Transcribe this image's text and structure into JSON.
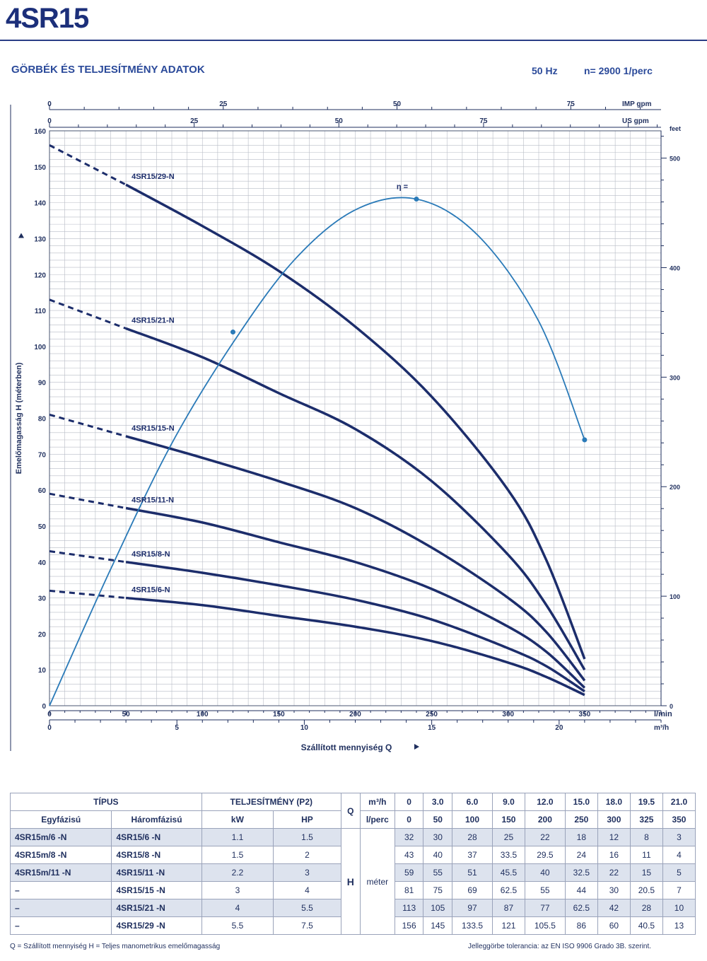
{
  "header": {
    "title": "4SR15",
    "subtitle": "GÖRBÉK ÉS TELJESÍTMÉNY ADATOK",
    "frequency": "50 Hz",
    "speed": "n= 2900 1/perc"
  },
  "chart_data": {
    "type": "line",
    "x_lmin_ticks": [
      "0",
      "50",
      "100",
      "150",
      "200",
      "250",
      "300",
      "350"
    ],
    "x_lmin_unit": "l/min",
    "x_m3h_ticks": [
      "0",
      "5",
      "10",
      "15",
      "20"
    ],
    "x_m3h_unit": "m³/h",
    "top_imp_ticks": [
      "0",
      "25",
      "50",
      "75"
    ],
    "top_imp_unit": "IMP gpm",
    "top_us_ticks": [
      "0",
      "25",
      "50",
      "75"
    ],
    "top_us_unit": "US gpm",
    "y_left_ticks": [
      "0",
      "10",
      "20",
      "30",
      "40",
      "50",
      "60",
      "70",
      "80",
      "90",
      "100",
      "110",
      "120",
      "130",
      "140",
      "150",
      "160"
    ],
    "y_right_ticks": [
      "0",
      "100",
      "200",
      "300",
      "400",
      "500"
    ],
    "y_right_unit": "feet",
    "xlabel": "Szállított mennyiség  Q",
    "ylabel": "Emelőmagasság H (méterben)",
    "xlim": [
      0,
      400
    ],
    "ylim": [
      0,
      160
    ],
    "eta_label": "η =",
    "series": [
      {
        "name": "4SR15/29-N",
        "x": [
          0,
          50,
          100,
          150,
          200,
          250,
          300,
          325,
          350
        ],
        "values": [
          156,
          145,
          133.5,
          121,
          105.5,
          86,
          60,
          40.5,
          13
        ]
      },
      {
        "name": "4SR15/21-N",
        "x": [
          0,
          50,
          100,
          150,
          200,
          250,
          300,
          325,
          350
        ],
        "values": [
          113,
          105,
          97,
          87,
          77,
          62.5,
          42,
          28,
          10
        ]
      },
      {
        "name": "4SR15/15-N",
        "x": [
          0,
          50,
          100,
          150,
          200,
          250,
          300,
          325,
          350
        ],
        "values": [
          81,
          75,
          69,
          62.5,
          55,
          44,
          30,
          20.5,
          7
        ]
      },
      {
        "name": "4SR15/11-N",
        "x": [
          0,
          50,
          100,
          150,
          200,
          250,
          300,
          325,
          350
        ],
        "values": [
          59,
          55,
          51,
          45.5,
          40,
          32.5,
          22,
          15,
          5
        ]
      },
      {
        "name": "4SR15/8-N",
        "x": [
          0,
          50,
          100,
          150,
          200,
          250,
          300,
          325,
          350
        ],
        "values": [
          43,
          40,
          37,
          33.5,
          29.5,
          24,
          16,
          11,
          4
        ]
      },
      {
        "name": "4SR15/6-N",
        "x": [
          0,
          50,
          100,
          150,
          200,
          250,
          300,
          325,
          350
        ],
        "values": [
          32,
          30,
          28,
          25,
          22,
          18,
          12,
          8,
          3
        ]
      }
    ],
    "efficiency_curve": {
      "x": [
        0,
        40,
        80,
        120,
        160,
        200,
        240,
        280,
        320,
        350
      ],
      "values": [
        0,
        38,
        73,
        101,
        124,
        138,
        141,
        131,
        107,
        74
      ]
    },
    "grid": true
  },
  "table": {
    "head": {
      "type": "TÍPUS",
      "single_phase": "Egyfázisú",
      "three_phase": "Háromfázisú",
      "power": "TELJESÍTMÉNY (P2)",
      "kw": "kW",
      "hp": "HP",
      "q": "Q",
      "m3h": "m³/h",
      "lperc": "l/perc",
      "h": "H",
      "meter": "méter"
    },
    "m3h": [
      "0",
      "3.0",
      "6.0",
      "9.0",
      "12.0",
      "15.0",
      "18.0",
      "19.5",
      "21.0"
    ],
    "lperc": [
      "0",
      "50",
      "100",
      "150",
      "200",
      "250",
      "300",
      "325",
      "350"
    ],
    "rows": [
      {
        "single": "4SR15m/6  -N",
        "three": "4SR15/6   -N",
        "kw": "1.1",
        "hp": "1.5",
        "h": [
          "32",
          "30",
          "28",
          "25",
          "22",
          "18",
          "12",
          "8",
          "3"
        ]
      },
      {
        "single": "4SR15m/8  -N",
        "three": "4SR15/8   -N",
        "kw": "1.5",
        "hp": "2",
        "h": [
          "43",
          "40",
          "37",
          "33.5",
          "29.5",
          "24",
          "16",
          "11",
          "4"
        ]
      },
      {
        "single": "4SR15m/11 -N",
        "three": "4SR15/11 -N",
        "kw": "2.2",
        "hp": "3",
        "h": [
          "59",
          "55",
          "51",
          "45.5",
          "40",
          "32.5",
          "22",
          "15",
          "5"
        ]
      },
      {
        "single": "–",
        "three": "4SR15/15 -N",
        "kw": "3",
        "hp": "4",
        "h": [
          "81",
          "75",
          "69",
          "62.5",
          "55",
          "44",
          "30",
          "20.5",
          "7"
        ]
      },
      {
        "single": "–",
        "three": "4SR15/21 -N",
        "kw": "4",
        "hp": "5.5",
        "h": [
          "113",
          "105",
          "97",
          "87",
          "77",
          "62.5",
          "42",
          "28",
          "10"
        ]
      },
      {
        "single": "–",
        "three": "4SR15/29 -N",
        "kw": "5.5",
        "hp": "7.5",
        "h": [
          "156",
          "145",
          "133.5",
          "121",
          "105.5",
          "86",
          "60",
          "40.5",
          "13"
        ]
      }
    ]
  },
  "footer": {
    "left": "Q = Szállított mennyiség   H = Teljes manometrikus emelőmagasság",
    "right": "Jelleggörbe tolerancia: az EN ISO 9906 Grado 3B. szerint."
  },
  "colors": {
    "pump_curve": "#1c2d6b",
    "efficiency_curve": "#2a7ab8",
    "grid": "#b8bcc6",
    "text": "#1f2f5e"
  }
}
